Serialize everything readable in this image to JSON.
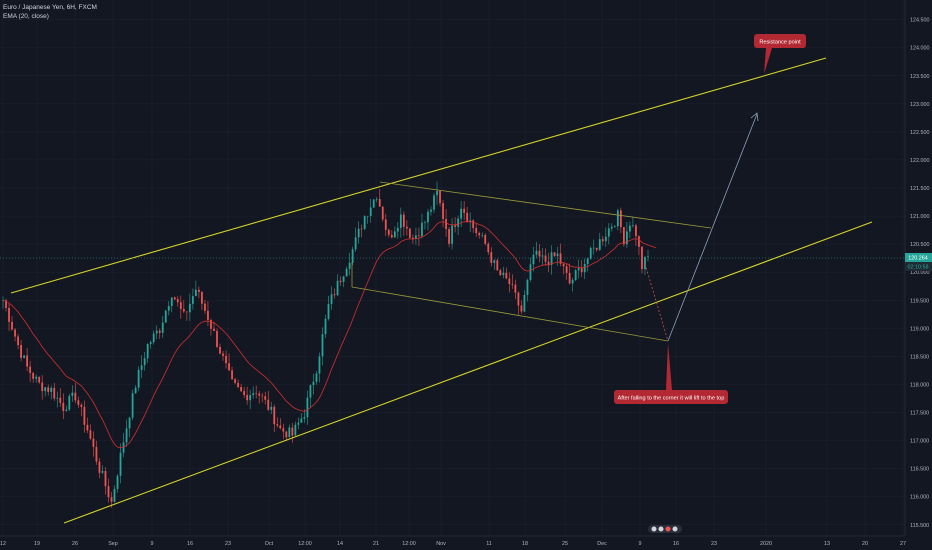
{
  "legend": {
    "symbol": "Euro / Japanese Yen, 6H, FXCM",
    "indicator": "EMA (20, close)"
  },
  "price_labels": {
    "last_price": "120.264",
    "countdown": "02:10:58",
    "last_price_bg": "#26a69a",
    "countdown_bg": "#131722"
  },
  "colors": {
    "background": "#131722",
    "grid": "#1e2230",
    "up_candle": "#26a69a",
    "down_candle": "#ef5350",
    "ema": "#d32f2f",
    "channel": "#d4d42a",
    "inner_channel": "#9a9a3a",
    "projection": "#8ea0b8",
    "callout": "#b22833",
    "axis_text": "#b2b5be"
  },
  "chart_data": {
    "type": "candlestick",
    "title": "Euro / Japanese Yen, 6H, FXCM",
    "ylim": [
      115.3,
      124.85
    ],
    "yticks": [
      "115.500",
      "116.000",
      "116.500",
      "117.000",
      "117.500",
      "118.000",
      "118.500",
      "119.000",
      "119.500",
      "120.000",
      "120.500",
      "121.000",
      "121.500",
      "122.000",
      "122.500",
      "123.000",
      "123.500",
      "124.000",
      "124.500"
    ],
    "xticks": [
      "12",
      "19",
      "26",
      "Sep",
      "9",
      "16",
      "23",
      "Oct",
      "12:00",
      "14",
      "21",
      "12:00",
      "Nov",
      "11",
      "18",
      "25",
      "Dec",
      "9",
      "16",
      "23",
      "2020",
      "13",
      "20",
      "27"
    ],
    "ema_period": 20,
    "keypoints": [
      {
        "i": 0,
        "v": 119.5
      },
      {
        "i": 2,
        "v": 119.2
      },
      {
        "i": 5,
        "v": 118.7
      },
      {
        "i": 8,
        "v": 118.3
      },
      {
        "i": 12,
        "v": 118.0
      },
      {
        "i": 16,
        "v": 117.9
      },
      {
        "i": 20,
        "v": 117.6
      },
      {
        "i": 24,
        "v": 117.8
      },
      {
        "i": 28,
        "v": 117.2
      },
      {
        "i": 32,
        "v": 116.5
      },
      {
        "i": 36,
        "v": 115.9
      },
      {
        "i": 40,
        "v": 117.0
      },
      {
        "i": 44,
        "v": 118.0
      },
      {
        "i": 48,
        "v": 118.7
      },
      {
        "i": 52,
        "v": 119.0
      },
      {
        "i": 56,
        "v": 119.65
      },
      {
        "i": 60,
        "v": 119.2
      },
      {
        "i": 64,
        "v": 119.7
      },
      {
        "i": 68,
        "v": 119.2
      },
      {
        "i": 72,
        "v": 118.6
      },
      {
        "i": 76,
        "v": 118.0
      },
      {
        "i": 80,
        "v": 117.8
      },
      {
        "i": 84,
        "v": 117.9
      },
      {
        "i": 88,
        "v": 117.6
      },
      {
        "i": 92,
        "v": 117.2
      },
      {
        "i": 96,
        "v": 117.1
      },
      {
        "i": 100,
        "v": 117.5
      },
      {
        "i": 104,
        "v": 118.3
      },
      {
        "i": 108,
        "v": 119.4
      },
      {
        "i": 112,
        "v": 119.9
      },
      {
        "i": 116,
        "v": 120.4
      },
      {
        "i": 120,
        "v": 121.0
      },
      {
        "i": 124,
        "v": 121.4
      },
      {
        "i": 128,
        "v": 120.6
      },
      {
        "i": 132,
        "v": 121.0
      },
      {
        "i": 136,
        "v": 120.6
      },
      {
        "i": 140,
        "v": 120.9
      },
      {
        "i": 144,
        "v": 121.4
      },
      {
        "i": 148,
        "v": 120.6
      },
      {
        "i": 152,
        "v": 121.2
      },
      {
        "i": 156,
        "v": 120.8
      },
      {
        "i": 160,
        "v": 120.5
      },
      {
        "i": 164,
        "v": 120.0
      },
      {
        "i": 168,
        "v": 119.8
      },
      {
        "i": 172,
        "v": 119.3
      },
      {
        "i": 176,
        "v": 120.3
      },
      {
        "i": 180,
        "v": 120.2
      },
      {
        "i": 184,
        "v": 120.3
      },
      {
        "i": 188,
        "v": 119.8
      },
      {
        "i": 192,
        "v": 120.1
      },
      {
        "i": 196,
        "v": 120.4
      },
      {
        "i": 200,
        "v": 120.7
      },
      {
        "i": 204,
        "v": 121.0
      },
      {
        "i": 206,
        "v": 120.6
      },
      {
        "i": 208,
        "v": 120.9
      },
      {
        "i": 210,
        "v": 120.7
      },
      {
        "i": 212,
        "v": 120.1
      },
      {
        "i": 214,
        "v": 120.26
      }
    ],
    "annotations": [
      {
        "text": "Resistance point"
      },
      {
        "text": "After falling to the corner it will lift to the top"
      }
    ]
  }
}
